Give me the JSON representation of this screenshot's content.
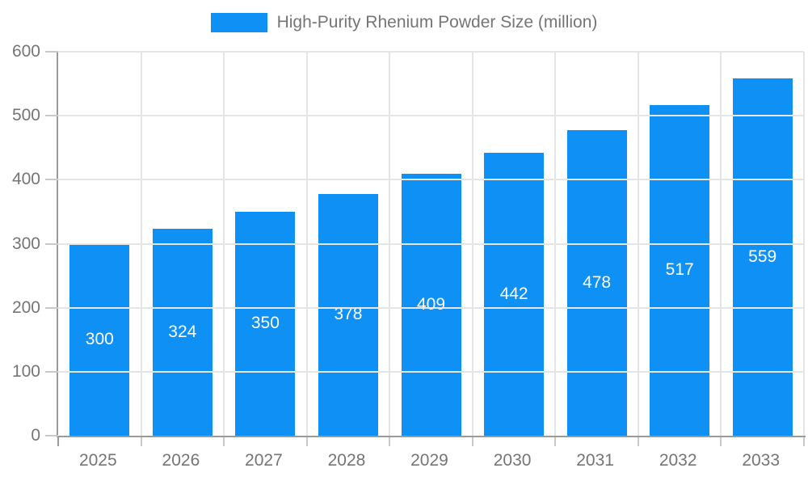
{
  "chart_data": {
    "type": "bar",
    "title": "High-Purity Rhenium Powder Size (million)",
    "categories": [
      "2025",
      "2026",
      "2027",
      "2028",
      "2029",
      "2030",
      "2031",
      "2032",
      "2033"
    ],
    "values": [
      300,
      324,
      350,
      378,
      409,
      442,
      478,
      517,
      559
    ],
    "xlabel": "",
    "ylabel": "",
    "ylim": [
      0,
      600
    ],
    "ytick_step": 100,
    "yticks": [
      0,
      100,
      200,
      300,
      400,
      500,
      600
    ],
    "grid": true,
    "legend_position": "top-center",
    "value_labels": "centered-inside-bars"
  },
  "legend": {
    "label": "High-Purity Rhenium Powder Size (million)"
  },
  "colors": {
    "bar": "#0E90F5",
    "value_label": "#ffffff",
    "axis_line": "#9a9a9a",
    "gridline": "#e5e5e5",
    "tick": "#c9c9c9",
    "axis_text": "#757575",
    "legend_text": "#757575",
    "background": "#ffffff"
  }
}
